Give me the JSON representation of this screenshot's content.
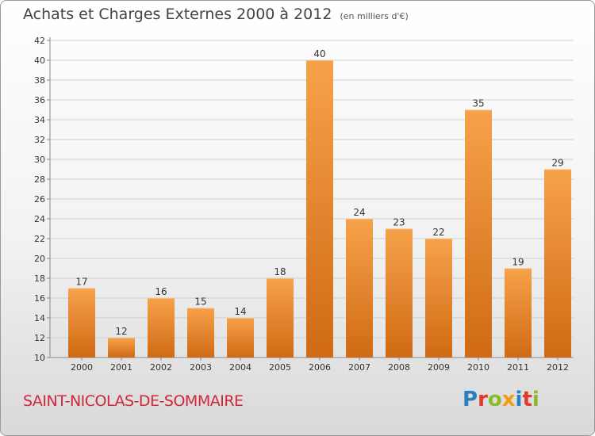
{
  "header": {
    "title": "Achats et Charges Externes 2000 à 2012",
    "unit": "(en milliers d'€)"
  },
  "footer": {
    "city": "SAINT-NICOLAS-DE-SOMMAIRE",
    "logo": "Proxiti",
    "logo_colors": [
      "#2a7fc0",
      "#e23a2a",
      "#8bbb2a",
      "#f39c12",
      "#2a7fc0",
      "#e23a2a",
      "#8bbb2a"
    ]
  },
  "chart_data": {
    "type": "bar",
    "title": "Achats et Charges Externes 2000 à 2012",
    "subtitle": "(en milliers d'€)",
    "categories": [
      "2000",
      "2001",
      "2002",
      "2003",
      "2004",
      "2005",
      "2006",
      "2007",
      "2008",
      "2009",
      "2010",
      "2011",
      "2012"
    ],
    "values": [
      17,
      12,
      16,
      15,
      14,
      18,
      40,
      24,
      23,
      22,
      35,
      19,
      29
    ],
    "ylim": [
      10,
      42
    ],
    "yticks": [
      10,
      12,
      14,
      16,
      18,
      20,
      22,
      24,
      26,
      28,
      30,
      32,
      34,
      36,
      38,
      40,
      42
    ],
    "grid": true,
    "bar_color_top": "#f6a24a",
    "bar_color_bottom": "#d06a14",
    "grid_color": "#d0d0d0"
  }
}
